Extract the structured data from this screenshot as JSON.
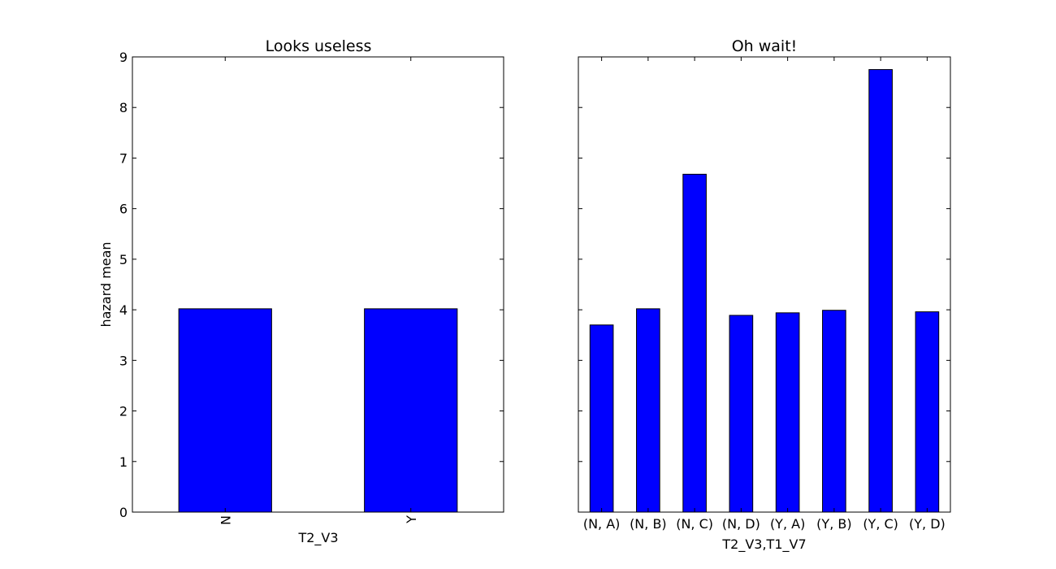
{
  "chart_data": [
    {
      "type": "bar",
      "title": "Looks useless",
      "xlabel": "T2_V3",
      "ylabel": "hazard mean",
      "categories": [
        "N",
        "Y"
      ],
      "values": [
        4.02,
        4.02
      ],
      "ylim": [
        0,
        9
      ],
      "yticks": [
        0,
        1,
        2,
        3,
        4,
        5,
        6,
        7,
        8,
        9
      ],
      "y_tick_labels_visible": true,
      "x_tick_label_rotation": "vertical",
      "bar_color": "#0000ff",
      "grid": false,
      "legend": "none"
    },
    {
      "type": "bar",
      "title": "Oh wait!",
      "xlabel": "T2_V3,T1_V7",
      "ylabel": "",
      "categories": [
        "(N, A)",
        "(N, B)",
        "(N, C)",
        "(N, D)",
        "(Y, A)",
        "(Y, B)",
        "(Y, C)",
        "(Y, D)"
      ],
      "values": [
        3.7,
        4.02,
        6.68,
        3.89,
        3.94,
        3.99,
        8.75,
        3.96
      ],
      "ylim": [
        0,
        9
      ],
      "yticks": [
        0,
        1,
        2,
        3,
        4,
        5,
        6,
        7,
        8,
        9
      ],
      "y_tick_labels_visible": false,
      "x_tick_label_rotation": "horizontal",
      "bar_color": "#0000ff",
      "grid": false,
      "legend": "none"
    }
  ]
}
